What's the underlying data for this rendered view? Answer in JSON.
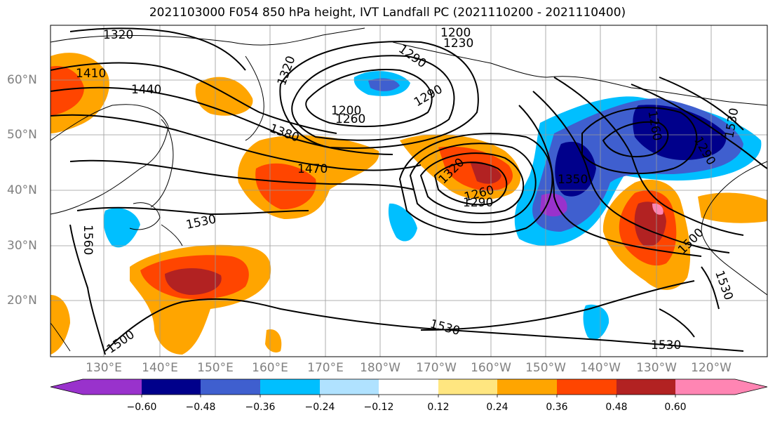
{
  "title": "2021103000 F054 850 hPa height, IVT Landfall PC (2021110200 - 2021110400)",
  "map": {
    "lat_labels": [
      "60°N",
      "50°N",
      "40°N",
      "30°N",
      "20°N"
    ],
    "lon_labels": [
      "130°E",
      "140°E",
      "150°E",
      "160°E",
      "170°E",
      "180°W",
      "170°W",
      "160°W",
      "150°W",
      "140°W",
      "130°W",
      "120°W"
    ],
    "contour_labels": [
      "1320",
      "1410",
      "1440",
      "1320",
      "1200",
      "1230",
      "1290",
      "1290",
      "1200",
      "1260",
      "1380",
      "1470",
      "1320",
      "1260",
      "1290",
      "1350",
      "1530",
      "1560",
      "1530",
      "1500",
      "1530",
      "1500",
      "1530",
      "1530",
      "1260",
      "1290"
    ],
    "colors": {
      "purple": "#9932cc",
      "navy": "#00008b",
      "royal_blue": "#3f5fcf",
      "sky_blue": "#00bfff",
      "light_blue": "#b0e2ff",
      "yellow": "#ffe680",
      "orange": "#ffa500",
      "red_orange": "#ff4500",
      "dark_red": "#b22222",
      "pink": "#ff85b3"
    }
  },
  "colorbar": {
    "ticks": [
      "−0.60",
      "−0.48",
      "−0.36",
      "−0.24",
      "−0.12",
      "0.12",
      "0.24",
      "0.36",
      "0.48",
      "0.60"
    ],
    "colors": [
      "#9932cc",
      "#00008b",
      "#3f5fcf",
      "#00bfff",
      "#b0e2ff",
      "#ffffff",
      "#ffe680",
      "#ffa500",
      "#ff4500",
      "#b22222",
      "#ff85b3"
    ]
  }
}
